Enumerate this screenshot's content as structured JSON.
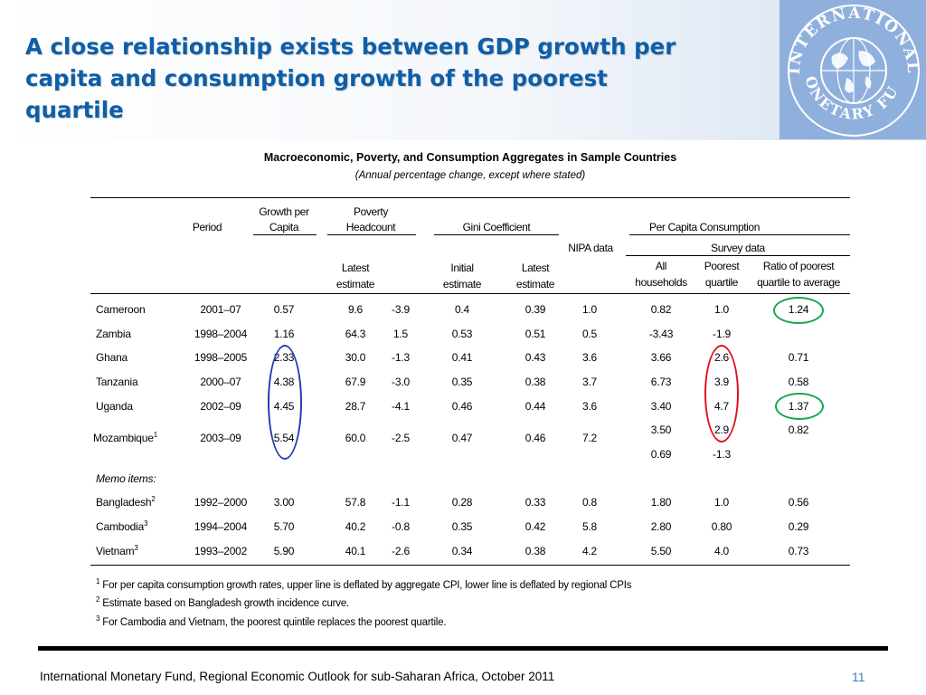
{
  "slide": {
    "title_lines": [
      "A close relationship exists between GDP growth per",
      "capita and consumption growth of the poorest",
      "quartile"
    ],
    "footer": "International Monetary Fund, Regional Economic Outlook for sub-Saharan Africa, October 2011",
    "page_number": "11",
    "colors": {
      "title": "#0e5ea8",
      "circle_blue": "#1f3fb5",
      "circle_red": "#e0141d",
      "circle_green": "#17a84a",
      "page_number": "#3d7fc6"
    }
  },
  "logo": {
    "text": "INTERNATIONAL MONETARY FUND",
    "icon": "imf-globe-seal-icon"
  },
  "table": {
    "title": "Macroeconomic, Poverty, and Consumption Aggregates in Sample Countries",
    "subtitle": "(Annual percentage change, except where stated)",
    "headers": {
      "period": "Period",
      "growth_line1": "Growth per",
      "growth_line2": "Capita",
      "poverty_line1": "Poverty",
      "poverty_line2": "Headcount",
      "gini": "Gini Coefficient",
      "per_capita": "Per Capita Consumption",
      "nipa": "NIPA data",
      "survey": "Survey data",
      "latest1": "Latest",
      "estimate1": "estimate",
      "initial": "Initial",
      "estimate2": "estimate",
      "latest2": "Latest",
      "estimate3": "estimate",
      "all": "All",
      "households": "households",
      "poorest": "Poorest",
      "quartile": "quartile",
      "ratio1": "Ratio of poorest",
      "ratio2": "quartile to average"
    },
    "rows": [
      {
        "country": "Cameroon",
        "sup": "",
        "period": "2001–07",
        "growth": "0.57",
        "pov_latest": "9.6",
        "pov_change": "-3.9",
        "gini_initial": "0.4",
        "gini_latest": "0.39",
        "nipa": "1.0",
        "all": "0.82",
        "poorest": "1.0",
        "ratio": "1.24"
      },
      {
        "country": "Zambia",
        "sup": "",
        "period": "1998–2004",
        "growth": "1.16",
        "pov_latest": "64.3",
        "pov_change": "1.5",
        "gini_initial": "0.53",
        "gini_latest": "0.51",
        "nipa": "0.5",
        "all": "-3.43",
        "poorest": "-1.9",
        "ratio": ""
      },
      {
        "country": "Ghana",
        "sup": "",
        "period": "1998–2005",
        "growth": "2.33",
        "pov_latest": "30.0",
        "pov_change": "-1.3",
        "gini_initial": "0.41",
        "gini_latest": "0.43",
        "nipa": "3.6",
        "all": "3.66",
        "poorest": "2.6",
        "ratio": "0.71"
      },
      {
        "country": "Tanzania",
        "sup": "",
        "period": "2000–07",
        "growth": "4.38",
        "pov_latest": "67.9",
        "pov_change": "-3.0",
        "gini_initial": "0.35",
        "gini_latest": "0.38",
        "nipa": "3.7",
        "all": "6.73",
        "poorest": "3.9",
        "ratio": "0.58"
      },
      {
        "country": "Uganda",
        "sup": "",
        "period": "2002–09",
        "growth": "4.45",
        "pov_latest": "28.7",
        "pov_change": "-4.1",
        "gini_initial": "0.46",
        "gini_latest": "0.44",
        "nipa": "3.6",
        "all": "3.40",
        "poorest": "4.7",
        "ratio": "1.37"
      },
      {
        "country": "Mozambique",
        "sup": "1",
        "period": "2003–09",
        "growth": "5.54",
        "pov_latest": "60.0",
        "pov_change": "-2.5",
        "gini_initial": "0.47",
        "gini_latest": "0.46",
        "nipa": "7.2",
        "all": "3.50",
        "poorest": "2.9",
        "ratio": "0.82"
      },
      {
        "country": "",
        "sup": "",
        "period": "",
        "growth": "",
        "pov_latest": "",
        "pov_change": "",
        "gini_initial": "",
        "gini_latest": "",
        "nipa": "",
        "all": "0.69",
        "poorest": "-1.3",
        "ratio": ""
      },
      {
        "country": "Memo items:",
        "sup": "",
        "period": "",
        "growth": "",
        "pov_latest": "",
        "pov_change": "",
        "gini_initial": "",
        "gini_latest": "",
        "nipa": "",
        "all": "",
        "poorest": "",
        "ratio": ""
      },
      {
        "country": "Bangladesh",
        "sup": "2",
        "period": "1992–2000",
        "growth": "3.00",
        "pov_latest": "57.8",
        "pov_change": "-1.1",
        "gini_initial": "0.28",
        "gini_latest": "0.33",
        "nipa": "0.8",
        "all": "1.80",
        "poorest": "1.0",
        "ratio": "0.56"
      },
      {
        "country": "Cambodia",
        "sup": "3",
        "period": "1994–2004",
        "growth": "5.70",
        "pov_latest": "40.2",
        "pov_change": "-0.8",
        "gini_initial": "0.35",
        "gini_latest": "0.42",
        "nipa": "5.8",
        "all": "2.80",
        "poorest": "0.80",
        "ratio": "0.29"
      },
      {
        "country": "Vietnam",
        "sup": "3",
        "period": "1993–2002",
        "growth": "5.90",
        "pov_latest": "40.1",
        "pov_change": "-2.6",
        "gini_initial": "0.34",
        "gini_latest": "0.38",
        "nipa": "4.2",
        "all": "5.50",
        "poorest": "4.0",
        "ratio": "0.73"
      }
    ],
    "footnotes": [
      {
        "num": "1",
        "text": "For per capita consumption growth rates, upper line is deflated by aggregate CPI, lower line is deflated by regional CPIs"
      },
      {
        "num": "2",
        "text": "Estimate based on Bangladesh growth incidence curve."
      },
      {
        "num": "3",
        "text": "For Cambodia and Vietnam, the poorest quintile replaces the poorest quartile."
      }
    ]
  }
}
